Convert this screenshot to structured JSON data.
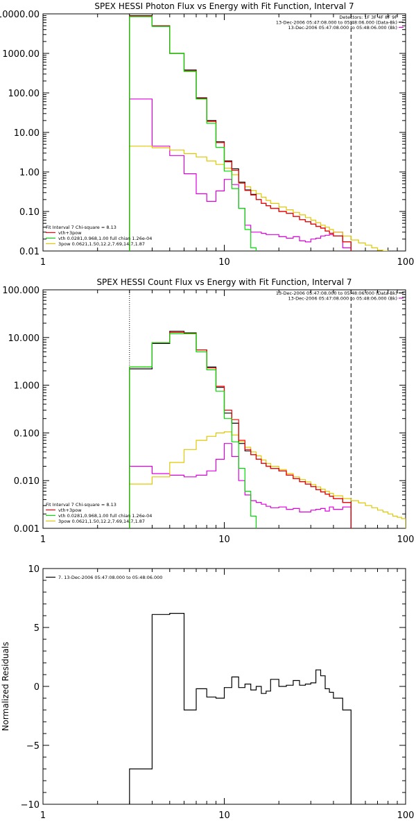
{
  "chart_data": [
    {
      "type": "line",
      "title": "SPEX HESSI Photon Flux vs Energy with Fit Function, Interval 7",
      "xscale": "log",
      "yscale": "log",
      "xlim": [
        1,
        100
      ],
      "ylim": [
        0.01,
        10000
      ],
      "xticks": [
        "1",
        "10",
        "100"
      ],
      "yticks": [
        {
          "v": 10000,
          "label": "10000.00"
        },
        {
          "v": 1000,
          "label": "1000.00"
        },
        {
          "v": 100,
          "label": "100.00"
        },
        {
          "v": 10,
          "label": "10.00"
        },
        {
          "v": 1,
          "label": "1.00"
        },
        {
          "v": 0.1,
          "label": "0.10"
        },
        {
          "v": 0.01,
          "label": "0.01"
        }
      ],
      "dashed_line_x": 50,
      "dotted_line_x": 3,
      "annotation_right": [
        "Detectors: 1F 3F 4F 8F 9F",
        "13-Dec-2006 05:47:08.000 to 05:48:06.000 (Data-Bk)",
        "13-Dec-2006 05:47:08.000 to 05:48:06.000 (Bk)"
      ],
      "legend_header": "Fit Interval 7   Chi-square = 8.13",
      "legend": [
        {
          "label": "vth+3pow",
          "color": "#ff0000"
        },
        {
          "label": "vth 0.0281,0.968,1.00  full chian 1.26e-04",
          "color": "#00dd00"
        },
        {
          "label": "3pow 0.0621,1.50,12.2,7.69,14.7,1.87",
          "color": "#e0c800"
        }
      ],
      "series": [
        {
          "key": "data",
          "color": "#000000",
          "edges": [
            3,
            4,
            5,
            6,
            7,
            8,
            9,
            10,
            11,
            12,
            13,
            14,
            15,
            16,
            17,
            18,
            20,
            22,
            24,
            26,
            28,
            30,
            32,
            34,
            36,
            38,
            40,
            45,
            50
          ],
          "values": [
            9000,
            5000,
            1000,
            380,
            75,
            20,
            5.8,
            1.9,
            1.2,
            0.55,
            0.35,
            0.27,
            0.2,
            0.16,
            0.14,
            0.12,
            0.1,
            0.09,
            0.075,
            0.062,
            0.055,
            0.048,
            0.042,
            0.038,
            0.032,
            0.028,
            0.024,
            0.017
          ]
        },
        {
          "key": "background",
          "color": "#dd00dd",
          "edges": [
            3,
            4,
            5,
            6,
            7,
            8,
            9,
            10,
            11,
            12,
            13,
            14,
            15,
            16,
            17,
            18,
            20,
            22,
            24,
            26,
            28,
            30,
            32,
            34,
            36,
            38,
            40,
            45,
            50
          ],
          "values": [
            70,
            4.5,
            2.6,
            0.9,
            0.28,
            0.18,
            0.33,
            0.65,
            0.48,
            0.12,
            0.045,
            0.03,
            0.03,
            0.028,
            0.026,
            0.026,
            0.023,
            0.021,
            0.023,
            0.018,
            0.017,
            0.02,
            0.021,
            0.024,
            0.025,
            0.026,
            0.03,
            0.012
          ]
        },
        {
          "key": "vth+3pow",
          "color": "#ff0000",
          "edges": [
            3,
            4,
            5,
            6,
            7,
            8,
            9,
            10,
            11,
            12,
            13,
            14,
            15,
            16,
            17,
            18,
            20,
            22,
            24,
            26,
            28,
            30,
            32,
            34,
            36,
            38,
            40,
            45,
            50
          ],
          "values": [
            8800,
            4900,
            1000,
            360,
            72,
            19,
            5.5,
            1.8,
            1.1,
            0.52,
            0.34,
            0.26,
            0.2,
            0.16,
            0.14,
            0.12,
            0.1,
            0.09,
            0.075,
            0.062,
            0.055,
            0.048,
            0.042,
            0.038,
            0.032,
            0.028,
            0.024,
            0.017
          ]
        },
        {
          "key": "vth",
          "color": "#00dd00",
          "edges": [
            3,
            4,
            5,
            6,
            7,
            8,
            9,
            10,
            11,
            12,
            13,
            14,
            15
          ],
          "values": [
            8500,
            4800,
            1000,
            350,
            70,
            17,
            4.2,
            1.05,
            0.38,
            0.12,
            0.035,
            0.012
          ]
        },
        {
          "key": "3pow",
          "color": "#e0c800",
          "edges": [
            3,
            4,
            5,
            6,
            7,
            8,
            9,
            10,
            11,
            12,
            13,
            14,
            15,
            16,
            17,
            18,
            20,
            22,
            24,
            26,
            28,
            30,
            32,
            34,
            36,
            38,
            40,
            45,
            50,
            55,
            60,
            65,
            70,
            75,
            80
          ],
          "values": [
            4.5,
            4.1,
            3.6,
            2.9,
            2.4,
            1.9,
            1.55,
            1.25,
            0.85,
            0.55,
            0.42,
            0.34,
            0.28,
            0.23,
            0.19,
            0.16,
            0.13,
            0.11,
            0.095,
            0.082,
            0.07,
            0.06,
            0.052,
            0.045,
            0.04,
            0.035,
            0.03,
            0.024,
            0.019,
            0.016,
            0.014,
            0.012,
            0.0105,
            0.0095
          ]
        }
      ]
    },
    {
      "type": "line",
      "title": "SPEX HESSI Count Flux vs Energy with Fit Function, Interval 7",
      "xscale": "log",
      "yscale": "log",
      "xlim": [
        1,
        100
      ],
      "ylim": [
        0.001,
        100
      ],
      "xticks": [
        "1",
        "10",
        "100"
      ],
      "yticks": [
        {
          "v": 100,
          "label": "100.000"
        },
        {
          "v": 10,
          "label": "10.000"
        },
        {
          "v": 1,
          "label": "1.000"
        },
        {
          "v": 0.1,
          "label": "0.100"
        },
        {
          "v": 0.01,
          "label": "0.010"
        },
        {
          "v": 0.001,
          "label": "0.001"
        }
      ],
      "dashed_line_x": 50,
      "dotted_line_x": 3,
      "annotation_right": [
        "13-Dec-2006 05:47:08.000 to 05:48:06.000 (Data-Bk)",
        "13-Dec-2006 05:47:08.000 to 05:48:06.000 (Bk)"
      ],
      "legend_header": "Fit Interval 7   Chi-square = 8.13",
      "legend": [
        {
          "label": "vth+3pow",
          "color": "#ff0000"
        },
        {
          "label": "vth 0.0281,0.968,1.00  full chian 1.26e-04",
          "color": "#00dd00"
        },
        {
          "label": "3pow 0.0621,1.50,12.2,7.69,14.7,1.87",
          "color": "#e0c800"
        }
      ],
      "series": [
        {
          "key": "data",
          "color": "#000000",
          "edges": [
            3,
            4,
            5,
            6,
            7,
            8,
            9,
            10,
            11,
            12,
            13,
            14,
            15,
            16,
            17,
            18,
            20,
            22,
            24,
            26,
            28,
            30,
            32,
            34,
            36,
            38,
            40,
            45,
            50
          ],
          "values": [
            2.2,
            7.5,
            13.5,
            12.5,
            5.5,
            2.4,
            0.9,
            0.26,
            0.16,
            0.06,
            0.042,
            0.035,
            0.028,
            0.023,
            0.02,
            0.018,
            0.016,
            0.013,
            0.011,
            0.0095,
            0.0085,
            0.0075,
            0.0065,
            0.0058,
            0.0052,
            0.0047,
            0.0042,
            0.0035
          ]
        },
        {
          "key": "background",
          "color": "#dd00dd",
          "edges": [
            3,
            4,
            5,
            6,
            7,
            8,
            9,
            10,
            11,
            12,
            13,
            14,
            15,
            16,
            17,
            18,
            20,
            22,
            24,
            26,
            28,
            30,
            32,
            34,
            36,
            38,
            40,
            45,
            50
          ],
          "values": [
            0.02,
            0.014,
            0.013,
            0.012,
            0.013,
            0.016,
            0.028,
            0.06,
            0.032,
            0.01,
            0.005,
            0.0038,
            0.0035,
            0.0032,
            0.0029,
            0.0027,
            0.0028,
            0.0025,
            0.0026,
            0.0022,
            0.0022,
            0.0024,
            0.0025,
            0.0026,
            0.0023,
            0.0028,
            0.0025,
            0.0028
          ]
        },
        {
          "key": "vth+3pow",
          "color": "#ff0000",
          "edges": [
            3,
            4,
            5,
            6,
            7,
            8,
            9,
            10,
            11,
            12,
            13,
            14,
            15,
            16,
            17,
            18,
            20,
            22,
            24,
            26,
            28,
            30,
            32,
            34,
            36,
            38,
            40,
            45,
            50
          ],
          "values": [
            2.4,
            7.8,
            12.8,
            12.2,
            5.5,
            2.3,
            0.95,
            0.3,
            0.19,
            0.07,
            0.045,
            0.035,
            0.028,
            0.023,
            0.02,
            0.018,
            0.016,
            0.013,
            0.011,
            0.0095,
            0.0085,
            0.0075,
            0.0065,
            0.0058,
            0.0052,
            0.0047,
            0.0042,
            0.0035
          ]
        },
        {
          "key": "vth",
          "color": "#00dd00",
          "edges": [
            3,
            4,
            5,
            6,
            7,
            8,
            9,
            10,
            11,
            12,
            13,
            14,
            15
          ],
          "values": [
            2.4,
            7.8,
            12.0,
            12.0,
            5.0,
            2.1,
            0.75,
            0.2,
            0.065,
            0.018,
            0.006,
            0.0018
          ]
        },
        {
          "key": "3pow",
          "color": "#e0c800",
          "edges": [
            3,
            4,
            5,
            6,
            7,
            8,
            9,
            10,
            11,
            12,
            13,
            14,
            15,
            16,
            17,
            18,
            20,
            22,
            24,
            26,
            28,
            30,
            32,
            34,
            36,
            38,
            40,
            45,
            50,
            55,
            60,
            65,
            70,
            75,
            80,
            85,
            90,
            95,
            100
          ],
          "values": [
            0.0085,
            0.012,
            0.024,
            0.045,
            0.07,
            0.085,
            0.1,
            0.105,
            0.09,
            0.065,
            0.05,
            0.04,
            0.033,
            0.027,
            0.023,
            0.02,
            0.017,
            0.014,
            0.012,
            0.0105,
            0.0094,
            0.0083,
            0.0074,
            0.0066,
            0.006,
            0.0054,
            0.0048,
            0.0042,
            0.0038,
            0.0034,
            0.003,
            0.0027,
            0.0024,
            0.0022,
            0.002,
            0.0018,
            0.0017,
            0.0016
          ]
        }
      ]
    },
    {
      "type": "line",
      "title": "",
      "ylabel": "Normalized Residuals",
      "xscale": "log",
      "yscale": "linear",
      "xlim": [
        1,
        100
      ],
      "ylim": [
        -10,
        10
      ],
      "xticks": [
        "1",
        "10",
        "100"
      ],
      "yticks": [
        {
          "v": 10,
          "label": "10"
        },
        {
          "v": 5,
          "label": "5"
        },
        {
          "v": 0,
          "label": "0"
        },
        {
          "v": -5,
          "label": "−5"
        },
        {
          "v": -10,
          "label": "−10"
        }
      ],
      "legend": [
        {
          "label": "7. 13-Dec-2006 05:47:08.000 to 05:48:06.000",
          "color": "#000000"
        }
      ],
      "series": [
        {
          "key": "residuals",
          "color": "#000000",
          "edges": [
            3,
            4,
            5,
            6,
            7,
            8,
            9,
            10,
            11,
            12,
            13,
            14,
            15,
            16,
            17,
            18,
            20,
            22,
            24,
            26,
            28,
            30,
            32,
            34,
            36,
            38,
            40,
            45,
            50
          ],
          "values": [
            -7,
            6.1,
            6.2,
            -2,
            -0.2,
            -0.9,
            -1.0,
            -0.1,
            0.8,
            -0.1,
            0.2,
            -0.3,
            0.0,
            -0.6,
            -0.4,
            0.6,
            0.0,
            0.1,
            0.5,
            0.1,
            0.2,
            0.3,
            1.4,
            0.9,
            -0.2,
            -0.5,
            -1.0,
            -2.0
          ]
        }
      ]
    }
  ]
}
